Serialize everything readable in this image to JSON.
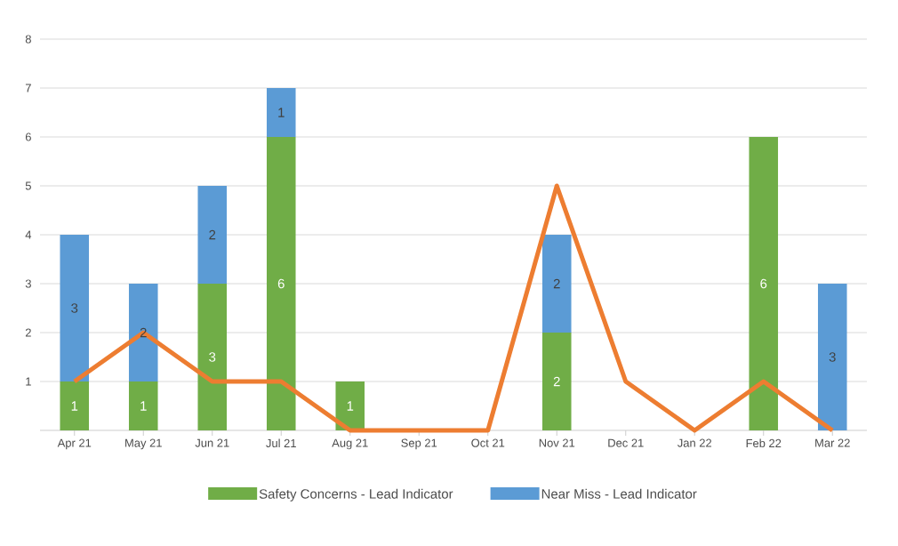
{
  "chart_data": {
    "type": "bar",
    "stacked": true,
    "categories": [
      "Apr 21",
      "May 21",
      "Jun 21",
      "Jul 21",
      "Aug 21",
      "Sep 21",
      "Oct 21",
      "Nov 21",
      "Dec 21",
      "Jan 22",
      "Feb 22",
      "Mar 22"
    ],
    "series": [
      {
        "name": "Safety Concerns - Lead Indicator",
        "color": "#70ad47",
        "values": [
          1,
          1,
          3,
          6,
          1,
          0,
          0,
          2,
          0,
          0,
          6,
          0
        ],
        "value_labels": [
          "1",
          "1",
          "3",
          "6",
          "1",
          null,
          null,
          "2",
          null,
          null,
          "6",
          null
        ]
      },
      {
        "name": "Near Miss - Lead Indicator",
        "color": "#5b9bd5",
        "values": [
          3,
          2,
          2,
          1,
          0,
          0,
          0,
          2,
          0,
          0,
          0,
          3
        ],
        "value_labels": [
          "3",
          "2",
          "2",
          "1",
          null,
          null,
          null,
          "2",
          null,
          null,
          null,
          "3"
        ]
      },
      {
        "type": "line",
        "color": "#ed7d31",
        "values": [
          1,
          2,
          1,
          1,
          0,
          0,
          0,
          5,
          1,
          0,
          1,
          0
        ]
      }
    ],
    "ylim": [
      0,
      8
    ],
    "yticks": [
      1,
      2,
      3,
      4,
      5,
      6,
      7,
      8
    ],
    "grid": "y",
    "legend": "bottom"
  }
}
